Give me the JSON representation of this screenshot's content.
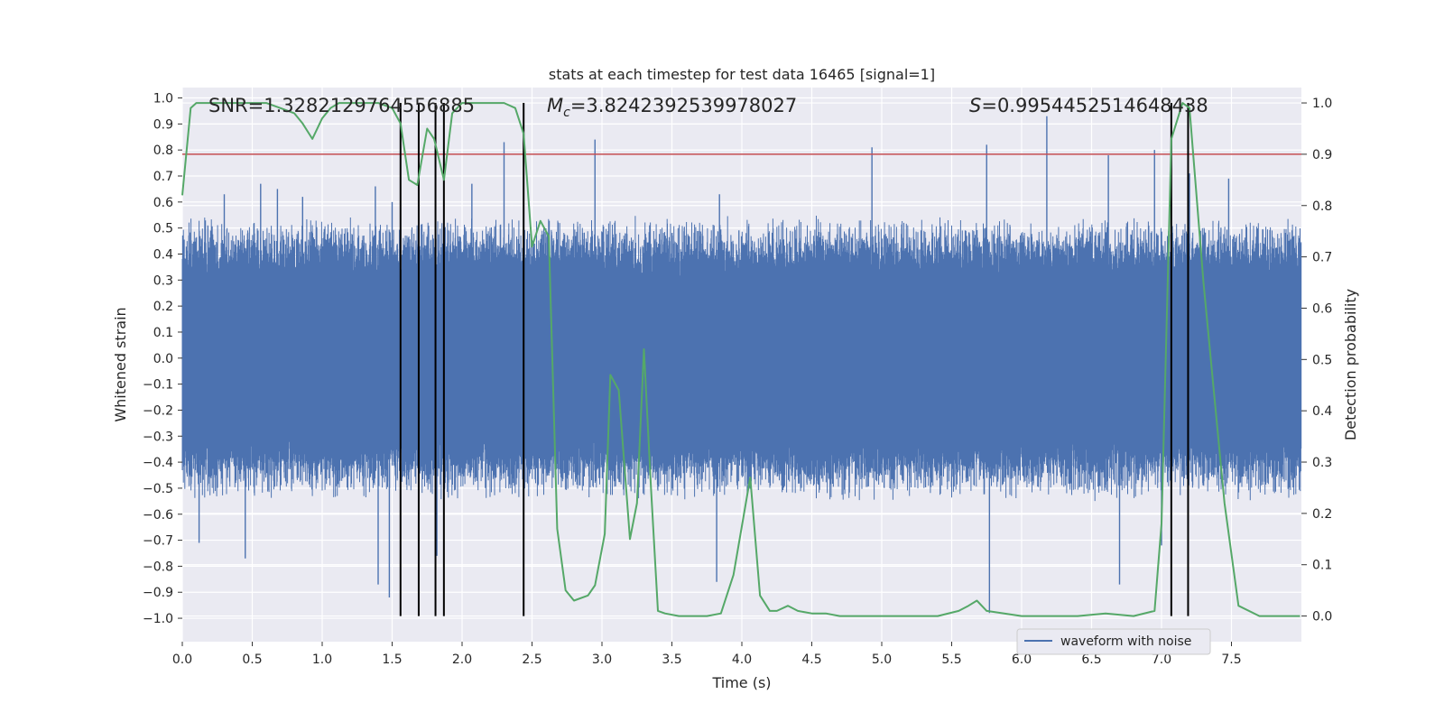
{
  "chart_data": {
    "type": "line",
    "title": "stats at each timestep for test data 16465 [signal=1]",
    "xlabel": "Time (s)",
    "ylabel": "Whitened strain",
    "ylabel_right": "Detection probability",
    "xlim": [
      0.0,
      8.0
    ],
    "ylim": [
      -1.09,
      1.04
    ],
    "ylim_right": [
      -0.05,
      1.03
    ],
    "grid": true,
    "x_ticks": [
      "0.0",
      "0.5",
      "1.0",
      "1.5",
      "2.0",
      "2.5",
      "3.0",
      "3.5",
      "4.0",
      "4.5",
      "5.0",
      "5.5",
      "6.0",
      "6.5",
      "7.0",
      "7.5"
    ],
    "x_tick_values": [
      0.0,
      0.5,
      1.0,
      1.5,
      2.0,
      2.5,
      3.0,
      3.5,
      4.0,
      4.5,
      5.0,
      5.5,
      6.0,
      6.5,
      7.0,
      7.5
    ],
    "y_ticks": [
      "1.0",
      "0.9",
      "0.8",
      "0.7",
      "0.6",
      "0.5",
      "0.4",
      "0.3",
      "0.2",
      "0.1",
      "0.0",
      "−0.1",
      "−0.2",
      "−0.3",
      "−0.4",
      "−0.5",
      "−0.6",
      "−0.7",
      "−0.8",
      "−0.9",
      "−1.0"
    ],
    "y_tick_values": [
      1.0,
      0.9,
      0.8,
      0.7,
      0.6,
      0.5,
      0.4,
      0.3,
      0.2,
      0.1,
      0.0,
      -0.1,
      -0.2,
      -0.3,
      -0.4,
      -0.5,
      -0.6,
      -0.7,
      -0.8,
      -0.9,
      -1.0
    ],
    "y2_ticks": [
      "1.0",
      "0.9",
      "0.8",
      "0.7",
      "0.6",
      "0.5",
      "0.4",
      "0.3",
      "0.2",
      "0.1",
      "0.0"
    ],
    "y2_tick_values": [
      1.0,
      0.9,
      0.8,
      0.7,
      0.6,
      0.5,
      0.4,
      0.3,
      0.2,
      0.1,
      0.0
    ],
    "annotations": {
      "snr": "SNR=1.3282129764556885",
      "mc_symbol": "M",
      "mc_sub": "c",
      "mc_value": "=3.8242392539978027",
      "s_symbol": "S",
      "s_value": "=0.9954452514648438"
    },
    "threshold": {
      "value": 0.9,
      "axis": "right",
      "color": "#c44e52"
    },
    "vertical_markers": [
      1.56,
      1.69,
      1.81,
      1.87,
      2.44,
      7.07,
      7.19
    ],
    "waveform": {
      "name": "waveform with noise",
      "color": "#4c72b0",
      "envelope_low": 0.4,
      "envelope_high": 0.55,
      "spikes": [
        {
          "x": 0.3,
          "v": 0.63
        },
        {
          "x": 0.56,
          "v": 0.67
        },
        {
          "x": 0.68,
          "v": 0.65
        },
        {
          "x": 0.86,
          "v": 0.62
        },
        {
          "x": 1.38,
          "v": 0.66
        },
        {
          "x": 1.5,
          "v": 0.6
        },
        {
          "x": 2.07,
          "v": 0.67
        },
        {
          "x": 2.3,
          "v": 0.83
        },
        {
          "x": 2.95,
          "v": 0.84
        },
        {
          "x": 3.84,
          "v": 0.63
        },
        {
          "x": 4.93,
          "v": 0.81
        },
        {
          "x": 5.75,
          "v": 0.82
        },
        {
          "x": 6.18,
          "v": 0.93
        },
        {
          "x": 6.62,
          "v": 0.78
        },
        {
          "x": 6.95,
          "v": 0.8
        },
        {
          "x": 7.2,
          "v": 0.71
        },
        {
          "x": 7.48,
          "v": 0.69
        },
        {
          "x": 0.12,
          "v": -0.71
        },
        {
          "x": 0.45,
          "v": -0.77
        },
        {
          "x": 1.4,
          "v": -0.87
        },
        {
          "x": 1.48,
          "v": -0.92
        },
        {
          "x": 1.82,
          "v": -0.76
        },
        {
          "x": 3.82,
          "v": -0.86
        },
        {
          "x": 5.77,
          "v": -0.98
        },
        {
          "x": 6.7,
          "v": -0.87
        },
        {
          "x": 7.0,
          "v": -0.72
        }
      ]
    },
    "detection_probability": {
      "color": "#55a868",
      "x": [
        0.0,
        0.06,
        0.1,
        0.2,
        0.3,
        0.4,
        0.5,
        0.6,
        0.7,
        0.8,
        0.86,
        0.93,
        1.0,
        1.06,
        1.12,
        1.2,
        1.3,
        1.4,
        1.5,
        1.56,
        1.62,
        1.68,
        1.75,
        1.8,
        1.87,
        1.93,
        2.0,
        2.1,
        2.2,
        2.3,
        2.38,
        2.44,
        2.5,
        2.56,
        2.62,
        2.68,
        2.74,
        2.8,
        2.9,
        2.95,
        3.02,
        3.06,
        3.12,
        3.2,
        3.25,
        3.3,
        3.35,
        3.4,
        3.45,
        3.55,
        3.65,
        3.75,
        3.85,
        3.94,
        4.06,
        4.13,
        4.2,
        4.25,
        4.33,
        4.4,
        4.5,
        4.6,
        4.7,
        4.8,
        5.0,
        5.2,
        5.4,
        5.55,
        5.62,
        5.68,
        5.75,
        6.0,
        6.2,
        6.4,
        6.6,
        6.8,
        6.95,
        7.0,
        7.07,
        7.15,
        7.2,
        7.3,
        7.45,
        7.55,
        7.7,
        7.99
      ],
      "y": [
        0.82,
        0.99,
        1.0,
        1.0,
        1.0,
        1.0,
        1.0,
        1.0,
        0.99,
        0.98,
        0.96,
        0.93,
        0.97,
        0.99,
        1.0,
        1.0,
        1.0,
        1.0,
        0.99,
        0.96,
        0.85,
        0.84,
        0.95,
        0.93,
        0.85,
        0.98,
        1.0,
        1.0,
        1.0,
        1.0,
        0.99,
        0.94,
        0.72,
        0.77,
        0.74,
        0.17,
        0.05,
        0.03,
        0.04,
        0.06,
        0.16,
        0.47,
        0.44,
        0.15,
        0.22,
        0.52,
        0.25,
        0.01,
        0.005,
        0.0,
        0.0,
        0.0,
        0.005,
        0.08,
        0.27,
        0.04,
        0.01,
        0.01,
        0.02,
        0.01,
        0.005,
        0.005,
        0.0,
        0.0,
        0.0,
        0.0,
        0.0,
        0.01,
        0.02,
        0.03,
        0.01,
        0.0,
        0.0,
        0.0,
        0.005,
        0.0,
        0.01,
        0.18,
        0.93,
        1.0,
        0.99,
        0.65,
        0.22,
        0.02,
        0.0,
        0.0
      ]
    }
  }
}
